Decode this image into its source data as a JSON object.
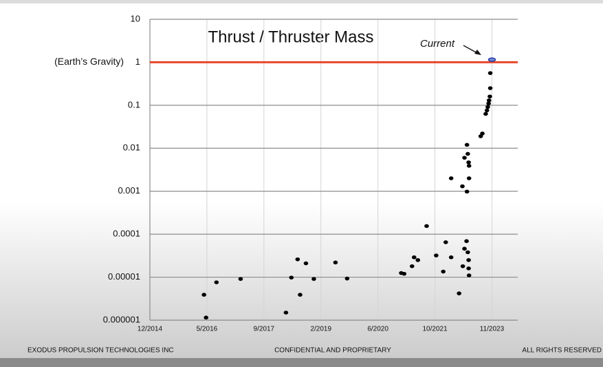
{
  "chart_data": {
    "type": "scatter",
    "title": "Thrust / Thruster Mass",
    "log_y": true,
    "grid": true,
    "xlim": [
      2014.92,
      2023.76
    ],
    "xticks": [
      {
        "value": 2014.92,
        "label": "12/2014"
      },
      {
        "value": 2016.29,
        "label": "5/2016"
      },
      {
        "value": 2017.66,
        "label": "9/2017"
      },
      {
        "value": 2019.03,
        "label": "2/2019"
      },
      {
        "value": 2020.4,
        "label": "6/2020"
      },
      {
        "value": 2021.77,
        "label": "10/2021"
      },
      {
        "value": 2023.14,
        "label": "11/2023"
      }
    ],
    "ylim": [
      1e-06,
      10
    ],
    "yticks": [
      1e-06,
      1e-05,
      0.0001,
      0.001,
      0.01,
      0.1,
      1,
      10
    ],
    "reference_line": {
      "y": 1,
      "label": "(Earth’s Gravity)",
      "color": "#e8462a"
    },
    "series": [
      {
        "color": "#000000",
        "x": [
          2016.22,
          2016.27,
          2016.52,
          2017.1,
          2018.19,
          2018.32,
          2018.47,
          2018.53,
          2018.67,
          2018.86,
          2019.38,
          2019.66,
          2020.96,
          2021.03,
          2021.22,
          2021.27,
          2021.36,
          2021.57,
          2021.8,
          2021.97,
          2022.03,
          2022.16,
          2022.16,
          2022.35,
          2022.43,
          2022.44,
          2022.48,
          2022.48,
          2022.53,
          2022.54,
          2022.54,
          2022.56,
          2022.56,
          2022.58,
          2022.58,
          2022.58,
          2022.59,
          2022.59,
          2022.59,
          2022.87,
          2022.91,
          2022.99,
          2023.02,
          2023.04,
          2023.06,
          2023.07,
          2023.09,
          2023.1,
          2023.1
        ],
        "values": [
          3.9e-06,
          1.15e-06,
          7.6e-06,
          9.1e-06,
          1.5e-06,
          9.8e-06,
          2.6e-05,
          3.9e-06,
          2.1e-05,
          9.1e-06,
          2.2e-05,
          9.3e-06,
          1.25e-05,
          1.2e-05,
          1.8e-05,
          2.9e-05,
          2.5e-05,
          0.000155,
          3.2e-05,
          1.35e-05,
          6.5e-05,
          2.9e-05,
          0.002,
          4.2e-06,
          0.0013,
          1.8e-05,
          0.006,
          4.6e-05,
          6.9e-05,
          0.012,
          0.00098,
          0.0074,
          3.8e-05,
          0.0047,
          2.5e-05,
          1.6e-05,
          0.0039,
          0.002,
          1.1e-05,
          0.019,
          0.022,
          0.063,
          0.076,
          0.091,
          0.11,
          0.13,
          0.16,
          0.25,
          0.56
        ]
      }
    ],
    "current": {
      "label": "Current",
      "x": 2023.14,
      "y": 1.15,
      "color": "#2b3f9e"
    },
    "footer": [
      "EXODUS PROPULSION TECHNOLOGIES INC",
      "CONFIDENTIAL AND PROPRIETARY",
      "ALL RIGHTS RESERVED"
    ]
  }
}
